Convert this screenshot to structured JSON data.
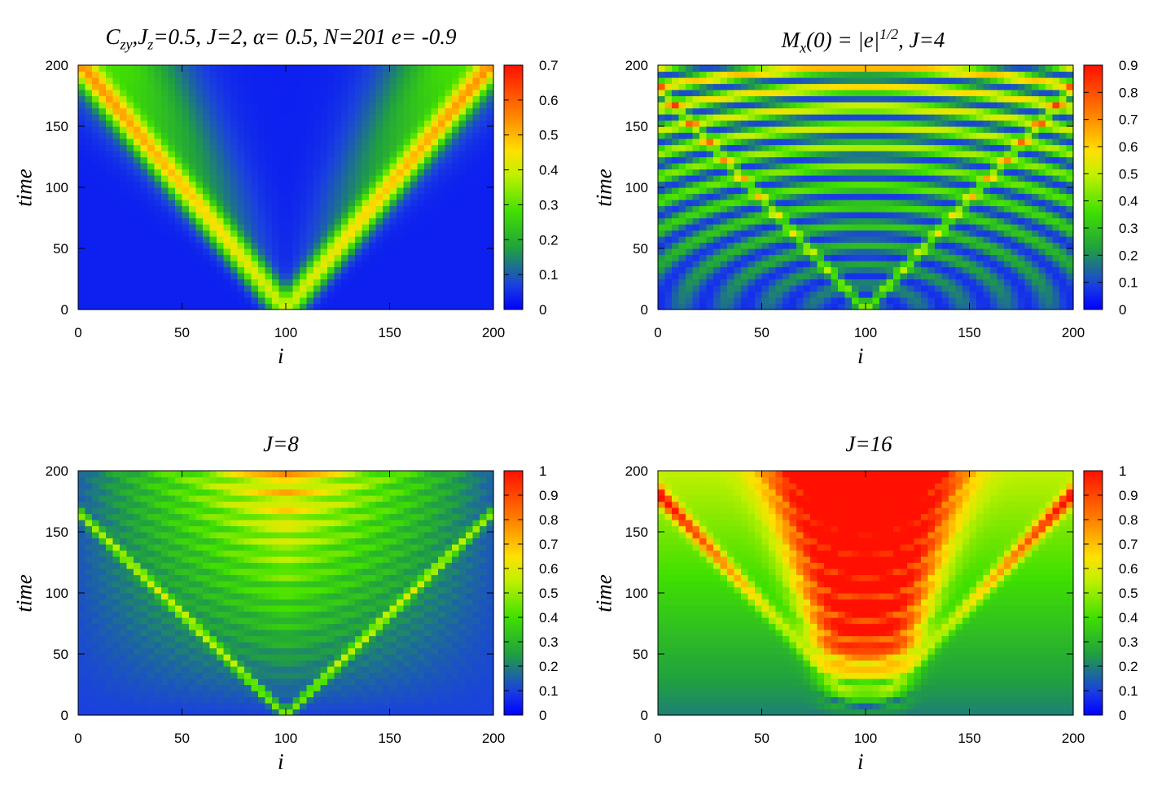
{
  "chart_data": [
    {
      "type": "heatmap",
      "title_parts": [
        "C",
        "zy",
        ",J",
        "z",
        "=0.5,  J=2, α= 0.5, N=201 e= -0.9"
      ],
      "xlabel": "i",
      "ylabel": "time",
      "xlim": [
        0,
        200
      ],
      "ylim": [
        0,
        200
      ],
      "xticks": [
        "0",
        "50",
        "100",
        "150",
        "200"
      ],
      "yticks": [
        "0",
        "50",
        "100",
        "150",
        "200"
      ],
      "colorbar": {
        "range": [
          0,
          0.7
        ],
        "ticks": [
          "0",
          "0.1",
          "0.2",
          "0.3",
          "0.4",
          "0.5",
          "0.6",
          "0.7"
        ]
      }
    },
    {
      "type": "heatmap",
      "title_parts": [
        "M",
        "x",
        "(0) = |e|",
        "1/2",
        ",  J=4"
      ],
      "xlabel": "i",
      "ylabel": "time",
      "xlim": [
        0,
        200
      ],
      "ylim": [
        0,
        200
      ],
      "xticks": [
        "0",
        "50",
        "100",
        "150",
        "200"
      ],
      "yticks": [
        "0",
        "50",
        "100",
        "150",
        "200"
      ],
      "colorbar": {
        "range": [
          0,
          0.9
        ],
        "ticks": [
          "0",
          "0.1",
          "0.2",
          "0.3",
          "0.4",
          "0.5",
          "0.6",
          "0.7",
          "0.8",
          "0.9"
        ]
      }
    },
    {
      "type": "heatmap",
      "title": "J=8",
      "xlabel": "i",
      "ylabel": "time",
      "xlim": [
        0,
        200
      ],
      "ylim": [
        0,
        200
      ],
      "xticks": [
        "0",
        "50",
        "100",
        "150",
        "200"
      ],
      "yticks": [
        "0",
        "50",
        "100",
        "150",
        "200"
      ],
      "colorbar": {
        "range": [
          0,
          1
        ],
        "ticks": [
          "0",
          "0.1",
          "0.2",
          "0.3",
          "0.4",
          "0.5",
          "0.6",
          "0.7",
          "0.8",
          "0.9",
          "1"
        ]
      }
    },
    {
      "type": "heatmap",
      "title": "J=16",
      "xlabel": "i",
      "ylabel": "time",
      "xlim": [
        0,
        200
      ],
      "ylim": [
        0,
        200
      ],
      "xticks": [
        "0",
        "50",
        "100",
        "150",
        "200"
      ],
      "yticks": [
        "0",
        "50",
        "100",
        "150",
        "200"
      ],
      "colorbar": {
        "range": [
          0,
          1
        ],
        "ticks": [
          "0",
          "0.1",
          "0.2",
          "0.3",
          "0.4",
          "0.5",
          "0.6",
          "0.7",
          "0.8",
          "0.9",
          "1"
        ]
      }
    }
  ]
}
